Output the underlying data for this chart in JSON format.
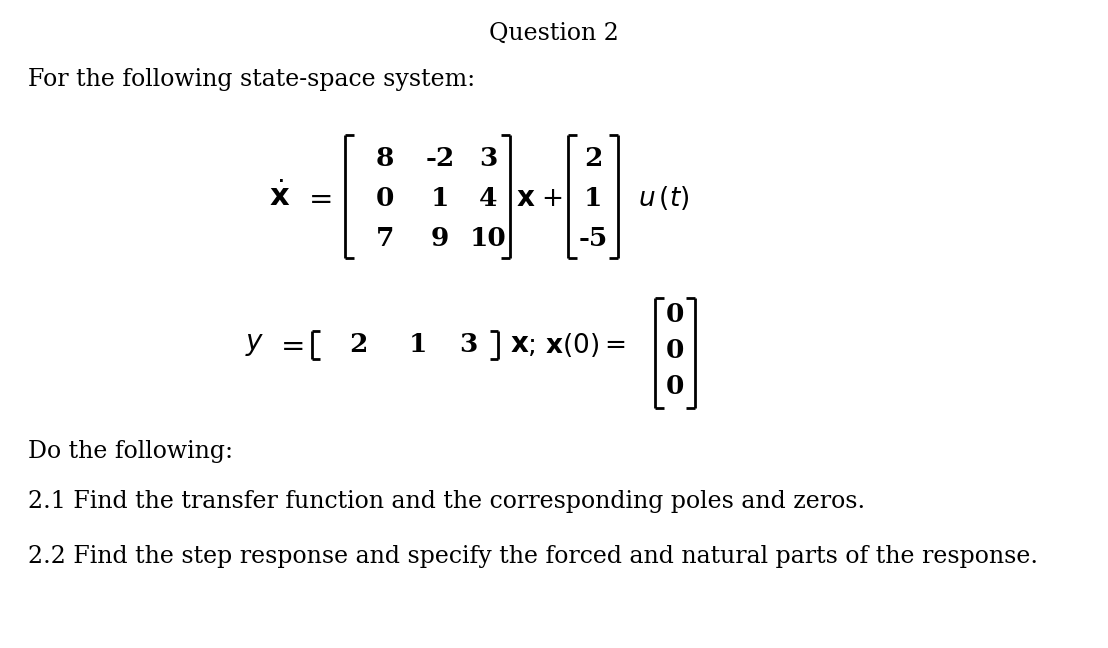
{
  "title": "Question 2",
  "background_color": "#ffffff",
  "text_color": "#000000",
  "intro_text": "For the following state-space system:",
  "do_following": "Do the following:",
  "item_21": "2.1 Find the transfer function and the corresponding poles and zeros.",
  "item_22": "2.2 Find the step response and specify the forced and natural parts of the response.",
  "A_matrix_rows": [
    [
      "8",
      "-2",
      "3"
    ],
    [
      "0",
      "1",
      "4"
    ],
    [
      "7",
      "9",
      "10"
    ]
  ],
  "B_matrix": [
    "2",
    "1",
    "-5"
  ],
  "C_matrix": [
    "2",
    "1",
    "3"
  ],
  "x0_matrix": [
    "0",
    "0",
    "0"
  ],
  "title_fs": 17,
  "body_fs": 17,
  "eq_fs": 19,
  "bracket_lw": 2.0,
  "fig_w": 11.08,
  "fig_h": 6.48,
  "dpi": 100
}
